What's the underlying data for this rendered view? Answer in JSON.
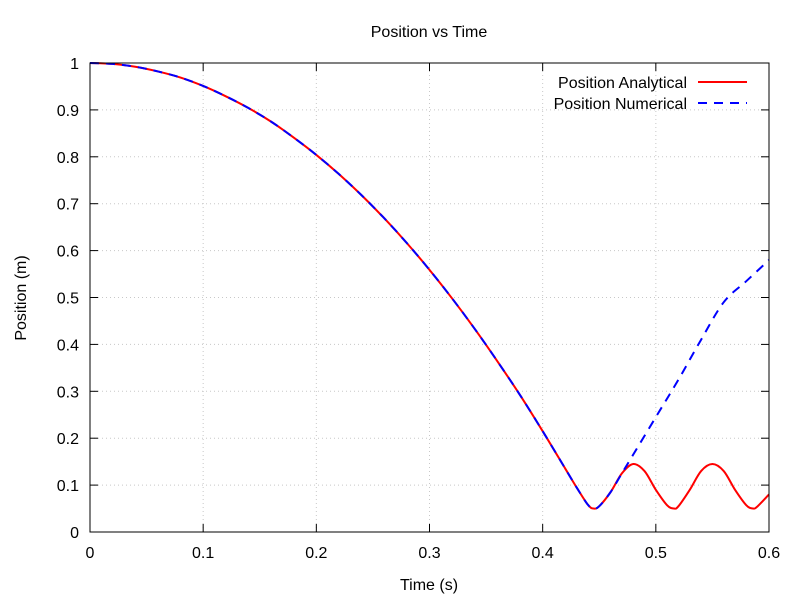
{
  "chart_data": {
    "type": "line",
    "title": "Position vs Time",
    "xlabel": "Time (s)",
    "ylabel": "Position (m)",
    "xlim": [
      0,
      0.6
    ],
    "ylim": [
      0,
      1
    ],
    "x_ticks": [
      "0",
      "0.1",
      "0.2",
      "0.3",
      "0.4",
      "0.5",
      "0.6"
    ],
    "y_ticks": [
      "0",
      "0.1",
      "0.2",
      "0.3",
      "0.4",
      "0.5",
      "0.6",
      "0.7",
      "0.8",
      "0.9",
      "1"
    ],
    "grid": true,
    "legend_position": "top-right",
    "series": [
      {
        "name": "Position Analytical",
        "color": "#ff0000",
        "style": "solid",
        "x": [
          0,
          0.02,
          0.04,
          0.06,
          0.08,
          0.1,
          0.12,
          0.14,
          0.16,
          0.18,
          0.2,
          0.22,
          0.24,
          0.26,
          0.28,
          0.3,
          0.32,
          0.34,
          0.36,
          0.38,
          0.4,
          0.42,
          0.43,
          0.44,
          0.445,
          0.45,
          0.46,
          0.47,
          0.48,
          0.49,
          0.5,
          0.51,
          0.516,
          0.52,
          0.53,
          0.54,
          0.55,
          0.56,
          0.57,
          0.58,
          0.586,
          0.59,
          0.6
        ],
        "y": [
          1.0,
          0.998,
          0.992,
          0.982,
          0.969,
          0.951,
          0.929,
          0.904,
          0.875,
          0.841,
          0.804,
          0.763,
          0.718,
          0.669,
          0.616,
          0.559,
          0.498,
          0.433,
          0.364,
          0.292,
          0.215,
          0.135,
          0.095,
          0.058,
          0.05,
          0.055,
          0.085,
          0.125,
          0.145,
          0.13,
          0.09,
          0.057,
          0.05,
          0.055,
          0.09,
          0.13,
          0.145,
          0.13,
          0.09,
          0.057,
          0.05,
          0.055,
          0.08
        ]
      },
      {
        "name": "Position Numerical",
        "color": "#0000ff",
        "style": "dashed",
        "x": [
          0,
          0.02,
          0.04,
          0.06,
          0.08,
          0.1,
          0.12,
          0.14,
          0.16,
          0.18,
          0.2,
          0.22,
          0.24,
          0.26,
          0.28,
          0.3,
          0.32,
          0.34,
          0.36,
          0.38,
          0.4,
          0.42,
          0.43,
          0.44,
          0.445,
          0.45,
          0.46,
          0.47,
          0.48,
          0.5,
          0.52,
          0.54,
          0.56,
          0.58,
          0.6
        ],
        "y": [
          1.0,
          0.998,
          0.992,
          0.982,
          0.969,
          0.951,
          0.929,
          0.904,
          0.875,
          0.841,
          0.804,
          0.763,
          0.718,
          0.669,
          0.616,
          0.559,
          0.498,
          0.433,
          0.364,
          0.292,
          0.215,
          0.135,
          0.095,
          0.058,
          0.05,
          0.055,
          0.085,
          0.125,
          0.165,
          0.245,
          0.325,
          0.41,
          0.49,
          0.535,
          0.58
        ]
      }
    ]
  }
}
